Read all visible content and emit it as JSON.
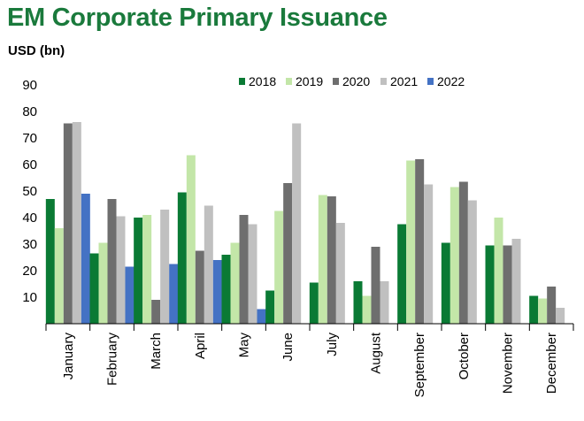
{
  "chart_data": {
    "type": "bar",
    "title": "EM Corporate Primary Issuance",
    "ylabel": "USD (bn)",
    "xlabel": "",
    "ylim": [
      0,
      90
    ],
    "yticks": [
      10,
      20,
      30,
      40,
      50,
      60,
      70,
      80,
      90
    ],
    "grid": false,
    "legend_position": "top-right",
    "categories": [
      "January",
      "February",
      "March",
      "April",
      "May",
      "June",
      "July",
      "August",
      "September",
      "October",
      "November",
      "December"
    ],
    "series": [
      {
        "name": "2018",
        "color": "#0a7a34",
        "values": [
          47,
          26.5,
          40,
          49.5,
          26,
          12.5,
          15.5,
          16,
          37.5,
          30.5,
          29.5,
          10.5
        ]
      },
      {
        "name": "2019",
        "color": "#c3e6a8",
        "values": [
          36,
          30.5,
          41,
          63.5,
          30.5,
          42.5,
          48.5,
          10.5,
          61.5,
          51.5,
          40,
          9.5
        ]
      },
      {
        "name": "2020",
        "color": "#6e6e6e",
        "values": [
          75.5,
          47,
          9,
          27.5,
          41,
          53,
          48,
          29,
          62,
          53.5,
          29.5,
          14
        ]
      },
      {
        "name": "2021",
        "color": "#c0c0c0",
        "values": [
          76,
          40.5,
          43,
          44.5,
          37.5,
          75.5,
          38,
          16,
          52.5,
          46.5,
          32,
          6
        ]
      },
      {
        "name": "2022",
        "color": "#4472c4",
        "values": [
          49,
          21.5,
          22.5,
          24,
          5.5,
          null,
          null,
          null,
          null,
          null,
          null,
          null
        ]
      }
    ]
  }
}
